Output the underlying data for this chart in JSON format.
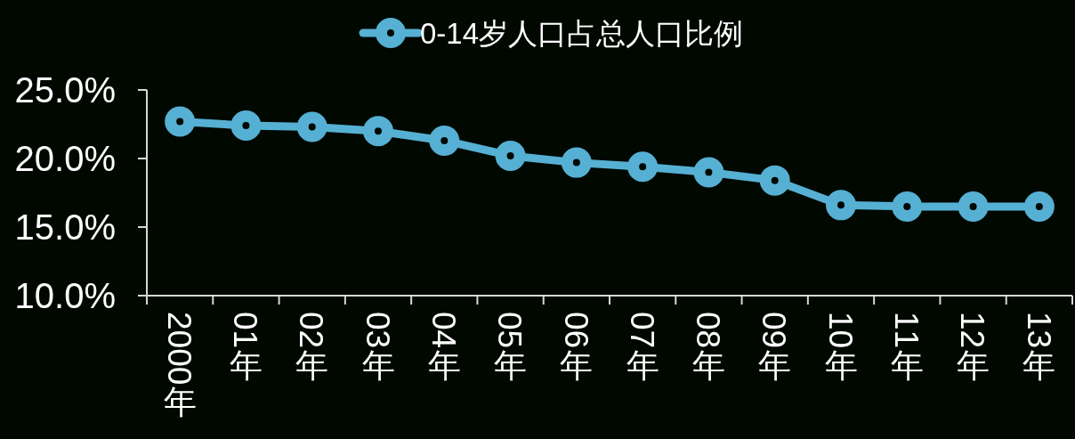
{
  "chart_data": {
    "type": "line",
    "categories": [
      "2000年",
      "01年",
      "02年",
      "03年",
      "04年",
      "05年",
      "06年",
      "07年",
      "08年",
      "09年",
      "10年",
      "11年",
      "12年",
      "13年"
    ],
    "series": [
      {
        "name": "0-14岁人口占总人口比例",
        "color": "#56b0d3",
        "values": [
          22.7,
          22.4,
          22.3,
          22.0,
          21.3,
          20.2,
          19.7,
          19.4,
          19.0,
          18.4,
          16.6,
          16.5,
          16.5,
          16.5
        ]
      }
    ],
    "ylim": [
      10,
      25
    ],
    "yticks": [
      {
        "value": 10,
        "label": "10.0%"
      },
      {
        "value": 15,
        "label": "15.0%"
      },
      {
        "value": 20,
        "label": "20.0%"
      },
      {
        "value": 25,
        "label": "25.0%"
      }
    ],
    "legend": "top",
    "marker": "circle",
    "line_style": "solid"
  }
}
